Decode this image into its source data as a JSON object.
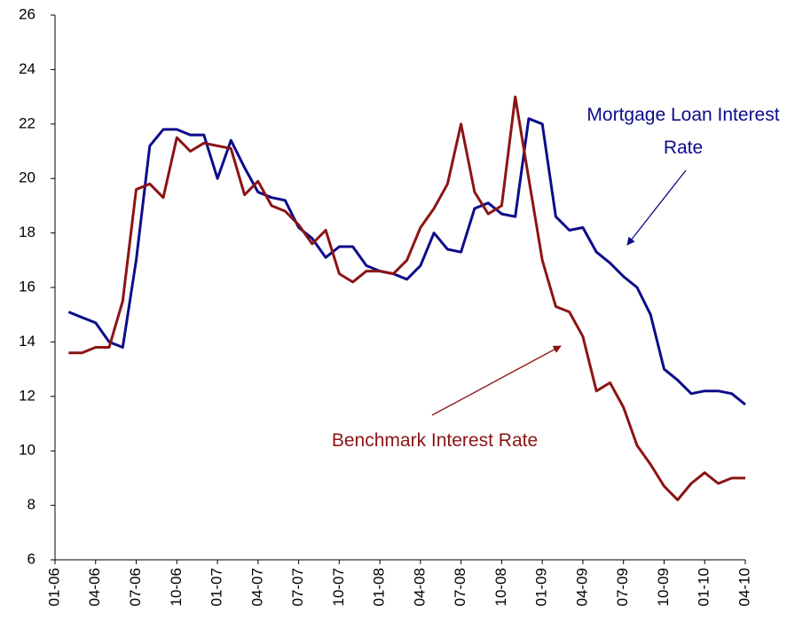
{
  "chart_data": {
    "type": "line",
    "categories": [
      "01-06",
      null,
      null,
      "04-06",
      null,
      null,
      "07-06",
      null,
      null,
      "10-06",
      null,
      null,
      "01-07",
      null,
      null,
      "04-07",
      null,
      null,
      "07-07",
      null,
      null,
      "10-07",
      null,
      null,
      "01-08",
      null,
      null,
      "04-08",
      null,
      null,
      "07-08",
      null,
      null,
      "10-08",
      null,
      null,
      "01-09",
      null,
      null,
      "04-09",
      null,
      null,
      "07-09",
      null,
      null,
      "10-09",
      null,
      null,
      "01-10",
      null,
      null,
      "04-10"
    ],
    "series": [
      {
        "name": "Mortgage Loan Interest Rate",
        "color": "#0c0c8a",
        "values": [
          null,
          15.1,
          14.9,
          14.7,
          14.0,
          13.8,
          17.0,
          21.2,
          21.8,
          21.8,
          21.6,
          21.6,
          20.0,
          21.4,
          20.4,
          19.5,
          19.3,
          19.2,
          18.2,
          17.8,
          17.1,
          17.5,
          17.5,
          16.8,
          16.6,
          16.5,
          16.3,
          16.8,
          18.0,
          17.4,
          17.3,
          18.9,
          19.1,
          18.7,
          18.6,
          22.2,
          22.0,
          18.6,
          18.1,
          18.2,
          17.3,
          16.9,
          16.4,
          16.0,
          15.0,
          13.0,
          12.6,
          12.1,
          12.2,
          12.2,
          12.1,
          11.7
        ]
      },
      {
        "name": "Benchmark Interest Rate",
        "color": "#8c1414",
        "values": [
          null,
          13.6,
          13.6,
          13.8,
          13.8,
          15.5,
          19.6,
          19.8,
          19.3,
          21.5,
          21.0,
          21.3,
          21.2,
          21.1,
          19.4,
          19.9,
          19.0,
          18.8,
          18.3,
          17.6,
          18.1,
          16.5,
          16.2,
          16.6,
          16.6,
          16.5,
          17.0,
          18.2,
          18.9,
          19.8,
          22.0,
          19.5,
          18.7,
          19.0,
          23.0,
          20.0,
          17.0,
          15.3,
          15.1,
          14.2,
          12.2,
          12.5,
          11.6,
          10.2,
          9.5,
          8.7,
          8.2,
          8.8,
          9.2,
          8.8,
          9.0,
          9.0
        ]
      }
    ],
    "ylim": [
      6,
      26
    ],
    "yticks": [
      6,
      8,
      10,
      12,
      14,
      16,
      18,
      20,
      22,
      24,
      26
    ],
    "grid": false
  }
}
